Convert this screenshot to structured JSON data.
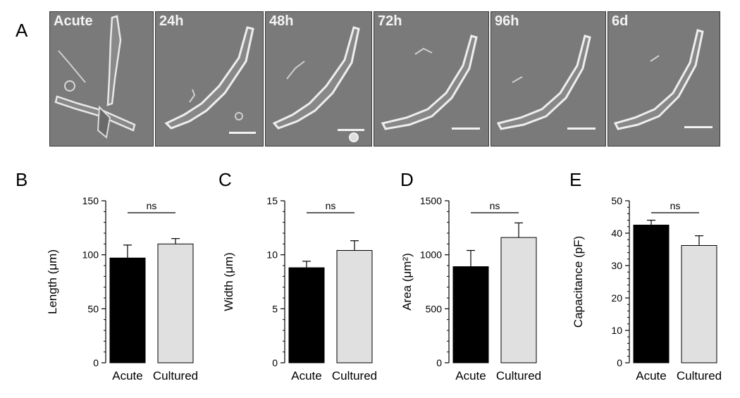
{
  "panels": {
    "A": "A",
    "B": "B",
    "C": "C",
    "D": "D",
    "E": "E"
  },
  "micrographs": [
    {
      "label": "Acute",
      "scale_bar": false
    },
    {
      "label": "24h",
      "scale_bar": true
    },
    {
      "label": "48h",
      "scale_bar": true
    },
    {
      "label": "72h",
      "scale_bar": true
    },
    {
      "label": "96h",
      "scale_bar": true
    },
    {
      "label": "6d",
      "scale_bar": true
    }
  ],
  "colors": {
    "acute_bar": "#000000",
    "cultured_bar": "#e0e0e0",
    "micro_bg": "#7a7a7a",
    "cell_stroke": "#eeeeee"
  },
  "chart_data": [
    {
      "type": "bar",
      "panel": "B",
      "categories": [
        "Acute",
        "Cultured"
      ],
      "values": [
        97,
        110
      ],
      "errors": [
        12,
        5
      ],
      "ylabel": "Length (μm)",
      "ylim": [
        0,
        150
      ],
      "yticks": [
        "0",
        "50",
        "100",
        "150"
      ],
      "significance": "ns"
    },
    {
      "type": "bar",
      "panel": "C",
      "categories": [
        "Acute",
        "Cultured"
      ],
      "values": [
        8.8,
        10.4
      ],
      "errors": [
        0.6,
        0.9
      ],
      "ylabel": "Width (μm)",
      "ylim": [
        0,
        15
      ],
      "yticks": [
        "0",
        "5",
        "10",
        "15"
      ],
      "significance": "ns"
    },
    {
      "type": "bar",
      "panel": "D",
      "categories": [
        "Acute",
        "Cultured"
      ],
      "values": [
        890,
        1160
      ],
      "errors": [
        150,
        135
      ],
      "ylabel": "Area (μm²)",
      "ylim": [
        0,
        1500
      ],
      "yticks": [
        "0",
        "500",
        "1000",
        "1500"
      ],
      "significance": "ns"
    },
    {
      "type": "bar",
      "panel": "E",
      "categories": [
        "Acute",
        "Cultured"
      ],
      "values": [
        42.5,
        36.2
      ],
      "errors": [
        1.5,
        3.0
      ],
      "ylabel": "Capacitance (pF)",
      "ylim": [
        0,
        50
      ],
      "yticks": [
        "0",
        "10",
        "20",
        "30",
        "40",
        "50"
      ],
      "significance": "ns"
    }
  ]
}
